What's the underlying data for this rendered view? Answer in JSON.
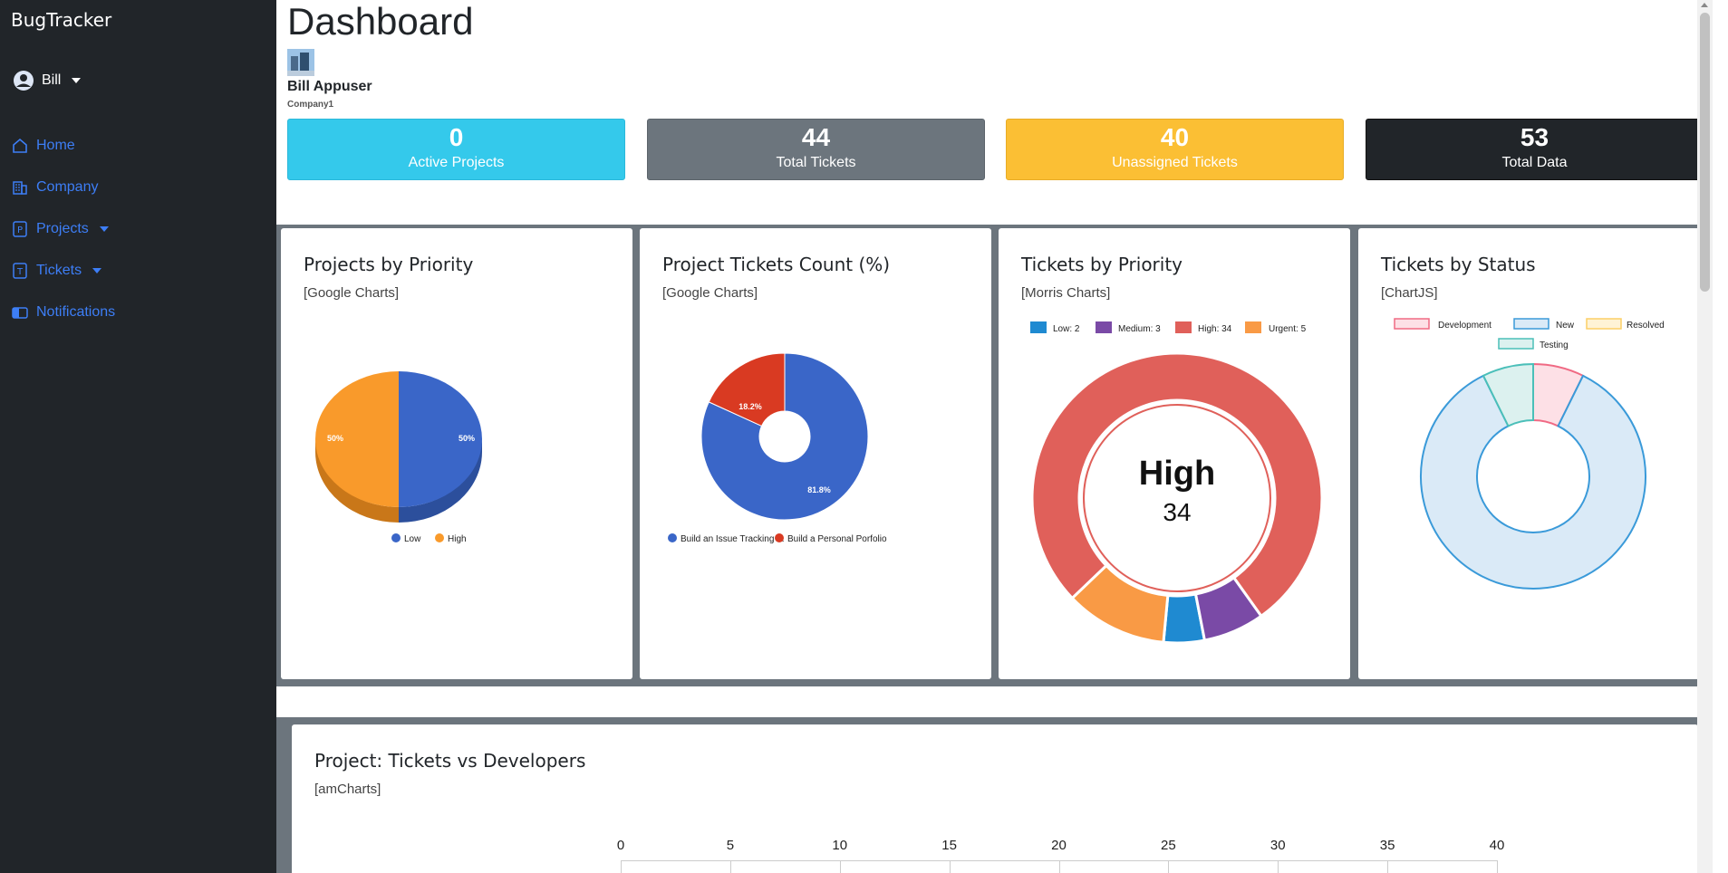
{
  "app": {
    "brand": "BugTracker"
  },
  "user": {
    "name": "Bill"
  },
  "nav": [
    {
      "label": "Home",
      "icon": "home-icon",
      "dropdown": false
    },
    {
      "label": "Company",
      "icon": "building-icon",
      "dropdown": false
    },
    {
      "label": "Projects",
      "icon": "projects-icon",
      "dropdown": true
    },
    {
      "label": "Tickets",
      "icon": "tickets-icon",
      "dropdown": true
    },
    {
      "label": "Notifications",
      "icon": "notifications-icon",
      "dropdown": false
    }
  ],
  "page": {
    "title": "Dashboard"
  },
  "profile": {
    "name": "Bill Appuser",
    "company": "Company1"
  },
  "stats": [
    {
      "value": "0",
      "label": "Active Projects",
      "color": "#34c9eb",
      "text_color": "#ffffff"
    },
    {
      "value": "44",
      "label": "Total Tickets",
      "color": "#6c757d",
      "text_color": "#ffffff"
    },
    {
      "value": "40",
      "label": "Unassigned Tickets",
      "color": "#fbbf34",
      "text_color": "#ffffff"
    },
    {
      "value": "53",
      "label": "Total Data",
      "color": "#212529",
      "text_color": "#ffffff"
    }
  ],
  "cards": [
    {
      "title": "Projects by Priority",
      "subtitle": "[Google Charts]"
    },
    {
      "title": "Project Tickets Count (%)",
      "subtitle": "[Google Charts]"
    },
    {
      "title": "Tickets by Priority",
      "subtitle": "[Morris Charts]"
    },
    {
      "title": "Tickets by Status",
      "subtitle": "[ChartJS]"
    }
  ],
  "bottom_card": {
    "title": "Project: Tickets vs Developers",
    "subtitle": "[amCharts]"
  },
  "chart_data": [
    {
      "type": "pie",
      "categories": [
        "Low",
        "High"
      ],
      "values": [
        50,
        50
      ],
      "data_labels": [
        "50%",
        "50%"
      ],
      "colors": [
        "#3a66c8",
        "#f99a2b"
      ],
      "legend": "bottom"
    },
    {
      "type": "pie",
      "categories": [
        "Build an Issue Tracking ...",
        "Build a Personal Porfolio"
      ],
      "values": [
        81.8,
        18.2
      ],
      "data_labels": [
        "81.8%",
        "18.2%"
      ],
      "colors": [
        "#3a66c8",
        "#d93a22"
      ],
      "legend": "bottom"
    },
    {
      "type": "pie",
      "categories": [
        "Low: 2",
        "Medium: 3",
        "High: 34",
        "Urgent: 5"
      ],
      "values": [
        2,
        3,
        34,
        5
      ],
      "colors": [
        "#1f8ad1",
        "#7a4aa6",
        "#e0605a",
        "#f99a45"
      ],
      "center_label": "High",
      "center_value": "34",
      "legend": "top"
    },
    {
      "type": "pie",
      "categories": [
        "Development",
        "New",
        "Resolved",
        "Testing"
      ],
      "values": [
        3,
        35,
        0,
        3
      ],
      "colors": [
        "#f06a84",
        "#3a9ad9",
        "#fccf66",
        "#4bbfb9"
      ],
      "legend": "top"
    },
    {
      "type": "bar",
      "xlim": [
        0,
        40
      ],
      "xticks": [
        "0",
        "5",
        "10",
        "15",
        "20",
        "25",
        "30",
        "35",
        "40"
      ]
    }
  ]
}
